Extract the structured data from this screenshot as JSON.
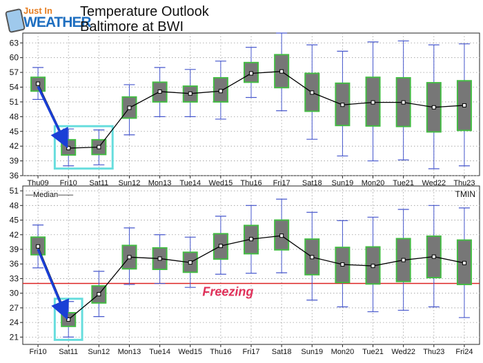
{
  "logo": {
    "top": "Just In",
    "bottom": "WEATHER"
  },
  "header": {
    "title": "Temperature Outlook",
    "subtitle": "Baltimore at BWI"
  },
  "colors": {
    "box_fill": "#777777",
    "box_edge": "#44bb44",
    "whisker": "#4455cc",
    "median": "#000000",
    "freezing": "#dd2222",
    "arrow": "#1a3fd6",
    "highlight": "#66dddd"
  },
  "chart_data": [
    {
      "type": "box",
      "id": "tmax",
      "categories": [
        "Thu09",
        "Fri10",
        "Sat11",
        "Sun12",
        "Mon13",
        "Tue14",
        "Wed15",
        "Thu16",
        "Fri17",
        "Sat18",
        "Sun19",
        "Mon20",
        "Tue21",
        "Wed22",
        "Thu23"
      ],
      "yticks": [
        36,
        39,
        42,
        45,
        48,
        51,
        54,
        57,
        60,
        63
      ],
      "ylim": [
        36,
        65
      ],
      "median": [
        54.7,
        41.6,
        41.8,
        49.8,
        53.1,
        52.7,
        53.2,
        56.8,
        57.2,
        52.9,
        50.4,
        50.9,
        50.9,
        49.9,
        50.3
      ],
      "q1": [
        53.2,
        40.2,
        40.3,
        47.7,
        51.0,
        51.0,
        51.0,
        55.0,
        53.9,
        49.1,
        46.2,
        46.1,
        46.0,
        44.9,
        45.2
      ],
      "q3": [
        56.0,
        43.3,
        43.3,
        52.0,
        55.0,
        54.2,
        55.9,
        59.0,
        60.6,
        56.8,
        54.8,
        56.0,
        55.9,
        54.9,
        55.3
      ],
      "min": [
        51.5,
        38.0,
        38.2,
        44.3,
        48.0,
        48.0,
        47.5,
        51.9,
        49.2,
        43.4,
        40.0,
        39.0,
        39.2,
        37.4,
        38.0
      ],
      "max": [
        58.0,
        45.5,
        45.3,
        54.5,
        58.0,
        57.6,
        59.3,
        62.1,
        65.0,
        62.6,
        61.3,
        63.2,
        63.4,
        62.6,
        62.8
      ],
      "legend": "",
      "label": "",
      "highlight": [
        1,
        2
      ]
    },
    {
      "type": "box",
      "id": "tmin",
      "categories": [
        "Fri10",
        "Sat11",
        "Sun12",
        "Mon13",
        "Tue14",
        "Wed15",
        "Thu16",
        "Fri17",
        "Sat18",
        "Sun19",
        "Mon20",
        "Tue21",
        "Wed22",
        "Thu23",
        "Fri24"
      ],
      "yticks": [
        21,
        24,
        27,
        30,
        33,
        36,
        39,
        42,
        45,
        48,
        51
      ],
      "ylim": [
        19.5,
        52
      ],
      "median": [
        39.6,
        24.6,
        29.8,
        37.4,
        37.1,
        36.3,
        39.7,
        41.1,
        41.8,
        37.4,
        35.9,
        35.6,
        36.8,
        37.5,
        36.2
      ],
      "q1": [
        37.9,
        23.2,
        28.0,
        35.0,
        34.9,
        34.3,
        37.0,
        38.1,
        38.9,
        33.8,
        32.2,
        31.9,
        32.4,
        33.2,
        31.8
      ],
      "q3": [
        41.5,
        26.0,
        31.5,
        39.8,
        39.3,
        38.4,
        42.2,
        43.9,
        45.0,
        41.1,
        39.4,
        39.5,
        41.2,
        41.7,
        40.9
      ],
      "min": [
        35.2,
        21.0,
        25.2,
        31.8,
        32.0,
        31.2,
        33.9,
        34.1,
        34.2,
        28.6,
        27.2,
        26.2,
        26.5,
        27.2,
        25.0
      ],
      "max": [
        44.0,
        28.3,
        34.5,
        43.4,
        42.0,
        41.5,
        45.8,
        48.0,
        49.3,
        46.6,
        44.9,
        45.6,
        47.2,
        48.0,
        47.5
      ],
      "legend": "Median",
      "label": "TMIN",
      "freezing": {
        "value": 32,
        "label": "Freezing"
      },
      "highlight": [
        1
      ]
    }
  ]
}
